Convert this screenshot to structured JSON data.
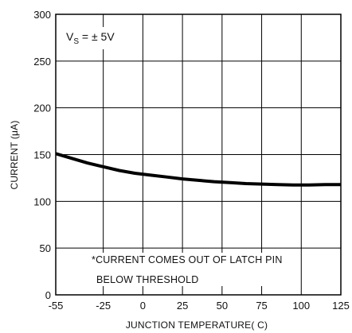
{
  "chart_data": {
    "type": "line",
    "xlabel": "JUNCTION TEMPERATURE( C)",
    "ylabel": "CURRENT (μA)",
    "xlim": [
      -55,
      125
    ],
    "ylim": [
      0,
      300
    ],
    "x_ticks": [
      "-55",
      "-25",
      "0",
      "25",
      "50",
      "75",
      "100",
      "125"
    ],
    "y_ticks": [
      "0",
      "50",
      "100",
      "150",
      "200",
      "250",
      "300"
    ],
    "grid": true,
    "series": [
      {
        "x": [
          -55,
          -45,
          -35,
          -25,
          -15,
          -5,
          5,
          15,
          25,
          35,
          45,
          55,
          65,
          75,
          85,
          95,
          105,
          115,
          125
        ],
        "y": [
          151,
          146,
          141,
          137,
          133,
          130,
          128,
          126,
          124,
          122.5,
          121,
          120,
          119,
          118.5,
          118,
          117.5,
          117.5,
          118,
          118
        ],
        "color": "#000000"
      }
    ],
    "condition": {
      "prefix": "V",
      "subscript": "S",
      "suffix": " = ± 5V"
    },
    "annotation_lines": [
      "*CURRENT COMES OUT OF LATCH PIN",
      "BELOW THRESHOLD"
    ]
  }
}
